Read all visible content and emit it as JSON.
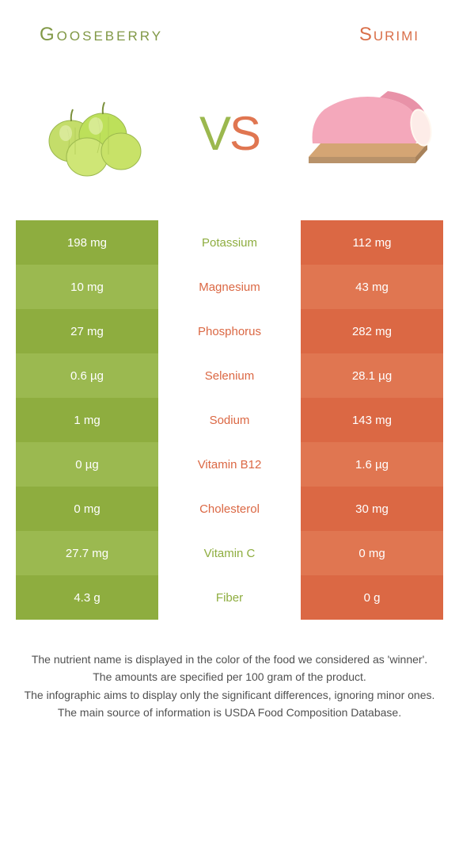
{
  "header": {
    "left_title": "Gooseberry",
    "right_title": "Surimi"
  },
  "vs": {
    "v": "V",
    "s": "S"
  },
  "colors": {
    "green_dark": "#8ead3f",
    "green_light": "#9bb950",
    "orange_dark": "#db6844",
    "orange_light": "#e07651",
    "bg": "#ffffff"
  },
  "rows": [
    {
      "left": "198 mg",
      "label": "Potassium",
      "right": "112 mg",
      "winner": "left"
    },
    {
      "left": "10 mg",
      "label": "Magnesium",
      "right": "43 mg",
      "winner": "right"
    },
    {
      "left": "27 mg",
      "label": "Phosphorus",
      "right": "282 mg",
      "winner": "right"
    },
    {
      "left": "0.6 µg",
      "label": "Selenium",
      "right": "28.1 µg",
      "winner": "right"
    },
    {
      "left": "1 mg",
      "label": "Sodium",
      "right": "143 mg",
      "winner": "right"
    },
    {
      "left": "0 µg",
      "label": "Vitamin B12",
      "right": "1.6 µg",
      "winner": "right"
    },
    {
      "left": "0 mg",
      "label": "Cholesterol",
      "right": "30 mg",
      "winner": "right"
    },
    {
      "left": "27.7 mg",
      "label": "Vitamin C",
      "right": "0 mg",
      "winner": "left"
    },
    {
      "left": "4.3 g",
      "label": "Fiber",
      "right": "0 g",
      "winner": "left"
    }
  ],
  "footer": {
    "line1": "The nutrient name is displayed in the color of the food we considered as 'winner'.",
    "line2": "The amounts are specified per 100 gram of the product.",
    "line3": "The infographic aims to display only the significant differences, ignoring minor ones.",
    "line4": "The main source of information is USDA Food Composition Database."
  }
}
